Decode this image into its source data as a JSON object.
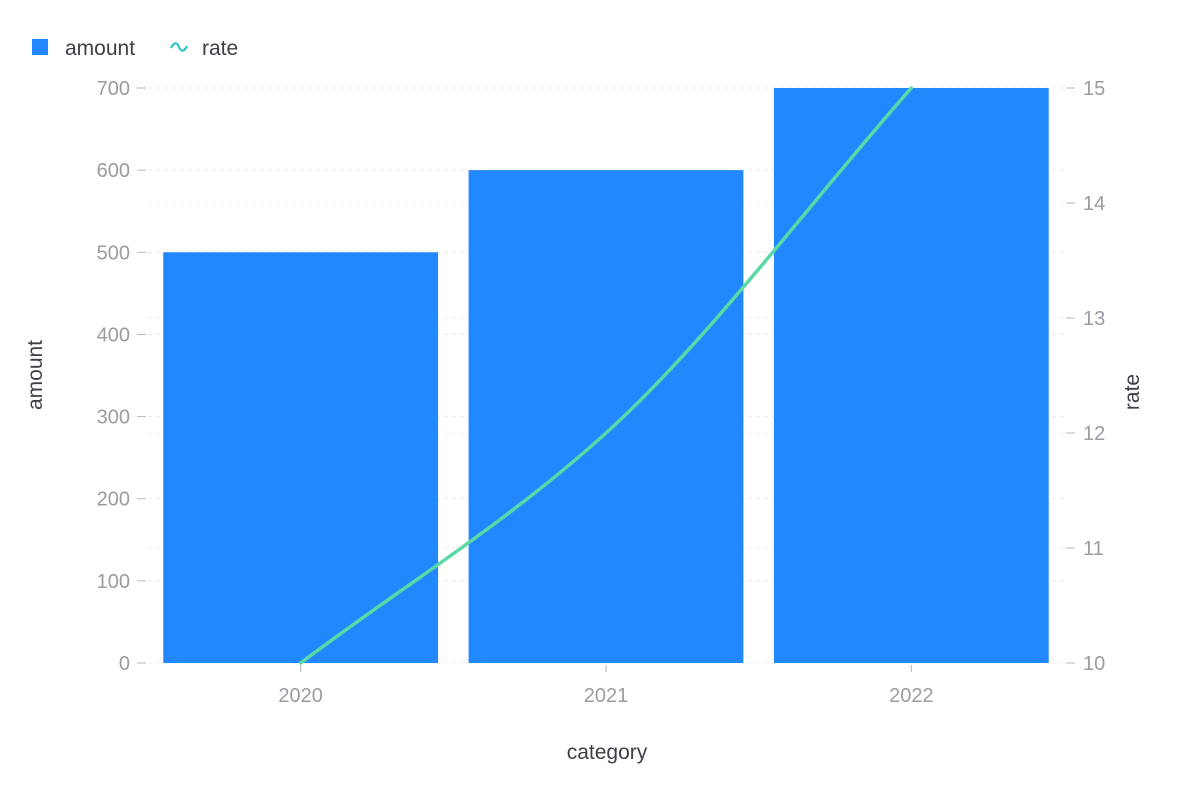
{
  "chart_data": {
    "type": "bar",
    "categories": [
      "2020",
      "2021",
      "2022"
    ],
    "series": [
      {
        "name": "amount",
        "type": "bar",
        "axis": "left",
        "values": [
          500,
          600,
          700
        ],
        "color": "#2188ff"
      },
      {
        "name": "rate",
        "type": "line",
        "axis": "right",
        "values": [
          10,
          12,
          15
        ],
        "color": "#5ad8a6",
        "smooth": true
      }
    ],
    "xlabel": "category",
    "ylabel": "amount",
    "y2label": "rate",
    "ylim": [
      0,
      700
    ],
    "y2lim": [
      10,
      15
    ],
    "yticks": [
      0,
      100,
      200,
      300,
      400,
      500,
      600,
      700
    ],
    "y2ticks": [
      10,
      11,
      12,
      13,
      14,
      15
    ],
    "grid": true,
    "legend_position": "top-left",
    "legend": [
      {
        "label": "amount",
        "marker": "square",
        "color": "#2188ff"
      },
      {
        "label": "rate",
        "marker": "wave",
        "color": "#1fc2c2"
      }
    ]
  }
}
